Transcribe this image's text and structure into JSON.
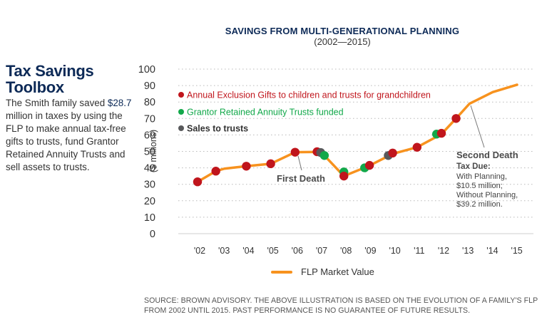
{
  "sidebar": {
    "title_line1": "Tax Savings",
    "title_line2": "Toolbox",
    "body_pre": "The Smith family saved ",
    "highlight": "$28.7",
    "body_post": " million in taxes by using the FLP to make annual tax-free gifts to trusts, fund Grantor Retained Annuity Trusts and sell assets to trusts."
  },
  "colors": {
    "navy": "#0d2a57",
    "line": "#f7921e",
    "gift": "#c0151c",
    "grat": "#12a84a",
    "sale": "#58595b",
    "grid": "#b9b9b9"
  },
  "chart_data": {
    "type": "line",
    "title": "SAVINGS FROM MULTI-GENERATIONAL PLANNING",
    "subtitle": "(2002—2015)",
    "xlabel": "",
    "ylabel": "($ millions)",
    "ylim": [
      0,
      100
    ],
    "yticks": [
      0,
      10,
      20,
      30,
      40,
      50,
      60,
      70,
      80,
      90,
      100
    ],
    "xlim": [
      2001.3,
      2015.6
    ],
    "xticks": [
      {
        "x": 2002,
        "label": "'02"
      },
      {
        "x": 2003,
        "label": "'03"
      },
      {
        "x": 2004,
        "label": "'04"
      },
      {
        "x": 2005,
        "label": "'05"
      },
      {
        "x": 2006,
        "label": "'06"
      },
      {
        "x": 2007,
        "label": "'07"
      },
      {
        "x": 2008,
        "label": "'08"
      },
      {
        "x": 2009,
        "label": "'09"
      },
      {
        "x": 2010,
        "label": "'10"
      },
      {
        "x": 2011,
        "label": "'11"
      },
      {
        "x": 2012,
        "label": "'12"
      },
      {
        "x": 2013,
        "label": "'13"
      },
      {
        "x": 2014,
        "label": "'14"
      },
      {
        "x": 2015,
        "label": "'15"
      }
    ],
    "grid": true,
    "series": [
      {
        "name": "FLP Market Value",
        "x": [
          2002.0,
          2002.75,
          2003.1,
          2004.0,
          2005.0,
          2006.0,
          2006.95,
          2007.2,
          2008.0,
          2009.0,
          2010.0,
          2011.0,
          2012.0,
          2012.6,
          2013.15,
          2014.1,
          2015.1
        ],
        "y": [
          31.5,
          38,
          39.5,
          41,
          42.5,
          49.5,
          49.7,
          47.5,
          35,
          41,
          48.5,
          52.5,
          60.5,
          70,
          79,
          86,
          90.5
        ]
      }
    ],
    "events": [
      {
        "type": "gift",
        "x": 2002.0,
        "y": 31.5
      },
      {
        "type": "gift",
        "x": 2002.75,
        "y": 38
      },
      {
        "type": "gift",
        "x": 2004.0,
        "y": 41
      },
      {
        "type": "gift",
        "x": 2005.0,
        "y": 42.5
      },
      {
        "type": "gift",
        "x": 2006.0,
        "y": 49.5
      },
      {
        "type": "gift",
        "x": 2006.9,
        "y": 49.8
      },
      {
        "type": "sale",
        "x": 2007.05,
        "y": 49.3
      },
      {
        "type": "grat",
        "x": 2007.2,
        "y": 47.5
      },
      {
        "type": "grat",
        "x": 2008.0,
        "y": 37.5
      },
      {
        "type": "gift",
        "x": 2008.0,
        "y": 35
      },
      {
        "type": "grat",
        "x": 2008.85,
        "y": 40
      },
      {
        "type": "gift",
        "x": 2009.05,
        "y": 41.5
      },
      {
        "type": "sale",
        "x": 2009.82,
        "y": 47.5
      },
      {
        "type": "gift",
        "x": 2010.0,
        "y": 49
      },
      {
        "type": "gift",
        "x": 2011.0,
        "y": 52.5
      },
      {
        "type": "grat",
        "x": 2011.8,
        "y": 60.5
      },
      {
        "type": "gift",
        "x": 2012.0,
        "y": 61
      },
      {
        "type": "gift",
        "x": 2012.6,
        "y": 70
      }
    ],
    "legend": [
      {
        "type": "gift",
        "label": "Annual Exclusion Gifts to children and trusts for grandchildren"
      },
      {
        "type": "grat",
        "label": "Grantor Retained Annuity Trusts funded"
      },
      {
        "type": "sale",
        "label": "Sales to trusts"
      }
    ],
    "line_legend": "FLP Market Value",
    "annotations": [
      {
        "id": "first-death",
        "x": 2006.3,
        "y": 47,
        "lines": [
          "First Death"
        ]
      },
      {
        "id": "second-death",
        "x": 2013.15,
        "y": 79,
        "lines": [
          "Second Death",
          "Tax Due:",
          "With Planning,",
          "$10.5 million;",
          "Without Planning,",
          "$39.2 million."
        ]
      }
    ]
  },
  "source": "SOURCE: BROWN ADVISORY. THE ABOVE ILLUSTRATION IS BASED ON THE EVOLUTION OF A FAMILY'S FLP FROM 2002 UNTIL 2015. PAST PERFORMANCE IS NO GUARANTEE OF FUTURE RESULTS."
}
